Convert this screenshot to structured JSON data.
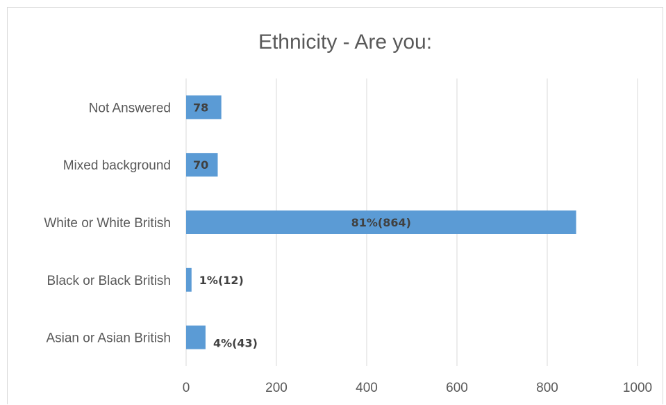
{
  "chart_data": {
    "type": "bar",
    "orientation": "horizontal",
    "title": "Ethnicity - Are you:",
    "categories": [
      "Not Answered",
      "Mixed background",
      "White or White British",
      "Black or Black British",
      "Asian or Asian British"
    ],
    "values": [
      78,
      70,
      864,
      12,
      43
    ],
    "data_labels": [
      "78",
      "70",
      "81%(864)",
      "1%(12)",
      "4%(43)"
    ],
    "xlim": [
      0,
      1000
    ],
    "x_ticks": [
      0,
      200,
      400,
      600,
      800,
      1000
    ],
    "tick_labels": [
      "0",
      "200",
      "400",
      "600",
      "800",
      "1000"
    ],
    "grid": true,
    "legend": "none",
    "bar_color": "#5b9bd5"
  }
}
